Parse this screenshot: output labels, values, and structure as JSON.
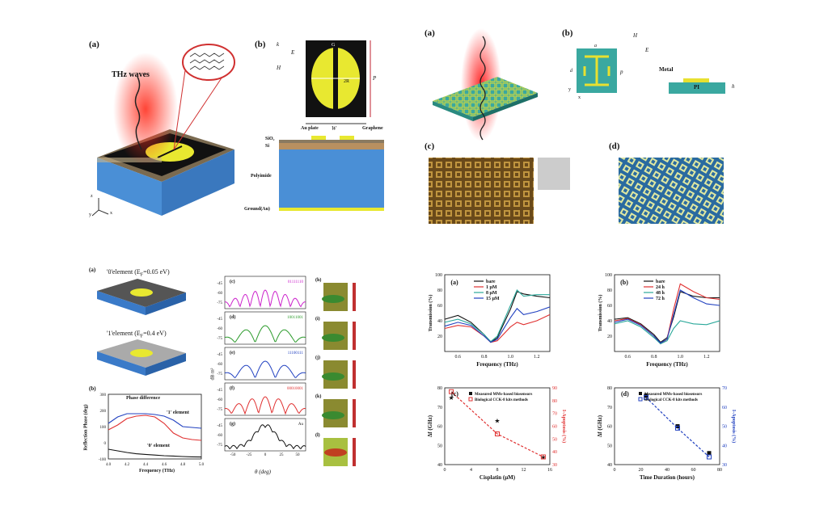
{
  "colors": {
    "bg": "#ffffff",
    "dielectric": "#4a8fd6",
    "gold": "#e8e830",
    "black": "#111111",
    "red": "#e03030",
    "green": "#2a9a2a",
    "blue": "#2040c0",
    "teal": "#2aa89a",
    "magenta": "#cc22cc"
  },
  "fig_tl": {
    "panel_a": "(a)",
    "panel_b": "(b)",
    "thz_label": "THz waves",
    "vec_k": "k",
    "vec_e": "E",
    "vec_h": "H",
    "dim_g": "G",
    "dim_2r": "2R",
    "dim_p": "P",
    "dim_w": "W",
    "layers": {
      "au_plate": "Au plate",
      "graphene": "Graphene",
      "sio2": "SiO₂",
      "si": "Si",
      "polyimide": "Polyimide",
      "ground": "Ground(Au)"
    },
    "axes_icon": {
      "x": "x",
      "y": "y",
      "z": "z"
    }
  },
  "fig_tr": {
    "panel_a": "(a)",
    "panel_b": "(b)",
    "panel_c": "(c)",
    "panel_d": "(d)",
    "vec_h": "H",
    "vec_e": "E",
    "dim_a": "a",
    "dim_d": "d",
    "dim_p": "p",
    "dim_h": "h",
    "axis_x": "x",
    "axis_y": "y",
    "metal": "Metal",
    "pi": "PI"
  },
  "fig_bl": {
    "panel_a": "(a)",
    "panel_b": "(b)",
    "elem0": "'0'element (E",
    "elem0_sub": "F",
    "elem0_val": "=0.05 eV)",
    "elem1": "'1'element (E",
    "elem1_sub": "F",
    "elem1_val": "=0.4 eV)",
    "phase_diff": "Phase difference",
    "curve1": "'1' element",
    "curve0": "'0' element",
    "ylabel": "Reflection Phase (deg)",
    "xlabel": "Frequency (THz)",
    "pattern_panels": [
      {
        "tag": "(c)",
        "code": "01111110"
      },
      {
        "tag": "(d)",
        "code": "10011001"
      },
      {
        "tag": "(e)",
        "code": "11100111"
      },
      {
        "tag": "(f)",
        "code": "00010001"
      },
      {
        "tag": "(g)",
        "code": "Au"
      }
    ],
    "db_label": "dB m²",
    "theta_label": "θ (deg)",
    "theta_ticks": [
      "-50",
      "-25",
      "0",
      "25",
      "50"
    ],
    "y_ticks": [
      "-45",
      "-60",
      "-75"
    ],
    "far_panels": [
      "(h)",
      "(i)",
      "(j)",
      "(k)",
      "(l)"
    ]
  },
  "chart_data": [
    {
      "type": "line",
      "title": "",
      "panel": "(b)",
      "xlabel": "Frequency (THz)",
      "ylabel": "Reflection Phase (deg)",
      "xlim": [
        4.0,
        5.0
      ],
      "ylim": [
        -100,
        300
      ],
      "x_ticks": [
        "4.0",
        "4.2",
        "4.4",
        "4.6",
        "4.8",
        "5.0"
      ],
      "y_ticks": [
        "300",
        "200",
        "100",
        "0",
        "-100"
      ],
      "series": [
        {
          "name": "Phase difference",
          "x": [
            4.0,
            4.1,
            4.2,
            4.3,
            4.4,
            4.5,
            4.6,
            4.7,
            4.8,
            4.9,
            5.0
          ],
          "values": [
            120,
            160,
            180,
            180,
            180,
            175,
            165,
            140,
            100,
            95,
            90
          ]
        },
        {
          "name": "'1' element",
          "x": [
            4.0,
            4.1,
            4.2,
            4.3,
            4.4,
            4.5,
            4.6,
            4.7,
            4.8,
            4.9,
            5.0
          ],
          "values": [
            80,
            110,
            150,
            165,
            170,
            160,
            120,
            60,
            30,
            20,
            15
          ]
        },
        {
          "name": "'0' element",
          "x": [
            4.0,
            4.1,
            4.2,
            4.3,
            4.4,
            4.5,
            4.6,
            4.7,
            4.8,
            4.9,
            5.0
          ],
          "values": [
            -40,
            -50,
            -60,
            -68,
            -72,
            -76,
            -80,
            -82,
            -85,
            -87,
            -88
          ]
        }
      ]
    },
    {
      "type": "line",
      "panel": "(a)",
      "xlabel": "Frequency (THz)",
      "ylabel": "Transmission (%)",
      "xlim": [
        0.5,
        1.3
      ],
      "ylim": [
        0,
        100
      ],
      "x_ticks": [
        "0.6",
        "0.8",
        "1.0",
        "1.2"
      ],
      "y_ticks": [
        "100",
        "80",
        "60",
        "40",
        "20"
      ],
      "series": [
        {
          "name": "bare",
          "x": [
            0.5,
            0.6,
            0.7,
            0.8,
            0.85,
            0.9,
            1.0,
            1.05,
            1.1,
            1.2,
            1.3
          ],
          "values": [
            42,
            47,
            38,
            22,
            12,
            18,
            55,
            78,
            75,
            72,
            70
          ]
        },
        {
          "name": "1 μM",
          "x": [
            0.5,
            0.6,
            0.7,
            0.8,
            0.85,
            0.9,
            1.0,
            1.05,
            1.1,
            1.2,
            1.3
          ],
          "values": [
            30,
            34,
            32,
            20,
            12,
            14,
            32,
            38,
            35,
            40,
            48
          ]
        },
        {
          "name": "8 μM",
          "x": [
            0.5,
            0.6,
            0.7,
            0.8,
            0.85,
            0.9,
            1.0,
            1.05,
            1.1,
            1.2,
            1.3
          ],
          "values": [
            38,
            42,
            36,
            22,
            13,
            20,
            60,
            80,
            72,
            74,
            74
          ]
        },
        {
          "name": "15 μM",
          "x": [
            0.5,
            0.6,
            0.7,
            0.8,
            0.85,
            0.9,
            1.0,
            1.05,
            1.1,
            1.2,
            1.3
          ],
          "values": [
            33,
            38,
            34,
            20,
            12,
            16,
            44,
            56,
            48,
            52,
            58
          ]
        }
      ]
    },
    {
      "type": "line",
      "panel": "(b)",
      "xlabel": "Frequency (THz)",
      "ylabel": "Transmission (%)",
      "xlim": [
        0.5,
        1.3
      ],
      "ylim": [
        0,
        100
      ],
      "x_ticks": [
        "0.6",
        "0.8",
        "1.0",
        "1.2"
      ],
      "y_ticks": [
        "100",
        "80",
        "60",
        "40",
        "20"
      ],
      "series": [
        {
          "name": "bare",
          "x": [
            0.5,
            0.6,
            0.7,
            0.8,
            0.85,
            0.9,
            0.95,
            1.0,
            1.1,
            1.2,
            1.3
          ],
          "values": [
            42,
            44,
            36,
            22,
            12,
            18,
            45,
            78,
            72,
            70,
            70
          ]
        },
        {
          "name": "24 h",
          "x": [
            0.5,
            0.6,
            0.7,
            0.8,
            0.85,
            0.9,
            0.95,
            1.0,
            1.1,
            1.2,
            1.3
          ],
          "values": [
            40,
            43,
            35,
            20,
            10,
            16,
            55,
            88,
            78,
            70,
            68
          ]
        },
        {
          "name": "48 h",
          "x": [
            0.5,
            0.6,
            0.7,
            0.8,
            0.85,
            0.9,
            0.95,
            1.0,
            1.1,
            1.2,
            1.3
          ],
          "values": [
            36,
            40,
            32,
            18,
            10,
            14,
            30,
            40,
            36,
            35,
            40
          ]
        },
        {
          "name": "72 h",
          "x": [
            0.5,
            0.6,
            0.7,
            0.8,
            0.85,
            0.9,
            0.95,
            1.0,
            1.1,
            1.2,
            1.3
          ],
          "values": [
            38,
            42,
            34,
            20,
            11,
            16,
            48,
            80,
            70,
            62,
            60
          ]
        }
      ]
    },
    {
      "type": "scatter",
      "panel": "(c)",
      "xlabel": "Cisplatin (μM)",
      "ylabel": "Δf (GHz)",
      "y2label": "I-Apoptosis (%)",
      "xlim": [
        0,
        16
      ],
      "ylim": [
        40,
        80
      ],
      "y2lim": [
        30,
        90
      ],
      "x_ticks": [
        "0",
        "4",
        "8",
        "12",
        "16"
      ],
      "y_ticks": [
        "80",
        "70",
        "60",
        "50",
        "40"
      ],
      "y2_ticks": [
        "90",
        "80",
        "70",
        "60",
        "50",
        "40",
        "30"
      ],
      "series": [
        {
          "name": "Measured MMs-based biosensors",
          "x": [
            1,
            8,
            15
          ],
          "values": [
            75,
            63,
            44
          ]
        },
        {
          "name": "Biological CCK-8 kits methods",
          "x": [
            1,
            8,
            15
          ],
          "values": [
            78,
            56,
            44
          ]
        }
      ]
    },
    {
      "type": "scatter",
      "panel": "(d)",
      "xlabel": "Time Duration (hours)",
      "ylabel": "Δf (GHz)",
      "y2label": "I-Apoptosis (%)",
      "xlim": [
        0,
        80
      ],
      "ylim": [
        40,
        80
      ],
      "y2lim": [
        30,
        70
      ],
      "x_ticks": [
        "0",
        "20",
        "40",
        "60",
        "80"
      ],
      "y_ticks": [
        "80",
        "70",
        "60",
        "50",
        "40"
      ],
      "y2_ticks": [
        "70",
        "60",
        "50",
        "40",
        "30"
      ],
      "series": [
        {
          "name": "Measured MMs-based biosensors",
          "x": [
            24,
            48,
            72
          ],
          "values": [
            76,
            60,
            46
          ]
        },
        {
          "name": "Biological CCK-8 kits methods",
          "x": [
            24,
            48,
            72
          ],
          "values": [
            75,
            59,
            44
          ]
        }
      ]
    }
  ]
}
